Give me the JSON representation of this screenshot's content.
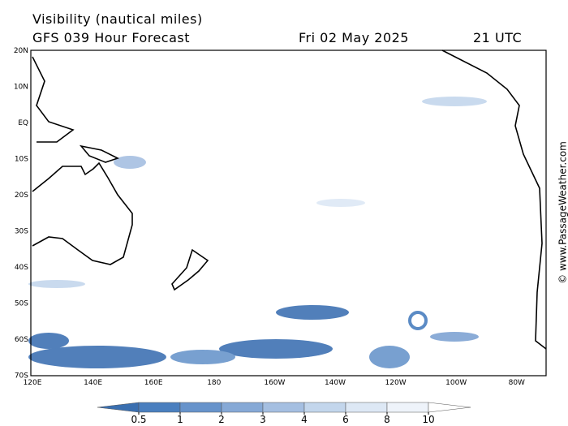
{
  "header": {
    "title": "Visibility (nautical miles)",
    "forecast": "GFS 039 Hour Forecast",
    "date": "Fri 02 May 2025",
    "time": "21 UTC"
  },
  "map": {
    "longitude_labels": [
      "120E",
      "140E",
      "160E",
      "180",
      "160W",
      "140W",
      "120W",
      "100W",
      "80W"
    ],
    "latitude_labels": [
      "20N",
      "10N",
      "EQ",
      "10S",
      "20S",
      "30S",
      "40S",
      "50S",
      "60S",
      "70S"
    ]
  },
  "colorbar": {
    "ticks": [
      0.5,
      1,
      2,
      3,
      4,
      6,
      8,
      10
    ],
    "colors": [
      "#3a6fb0",
      "#4a7fbf",
      "#6793cb",
      "#86a9d6",
      "#a5bfe1",
      "#c3d6ec",
      "#dde8f5",
      "#eef3fa",
      "#ffffff"
    ]
  },
  "watermark": "© www.PassageWeather.com"
}
